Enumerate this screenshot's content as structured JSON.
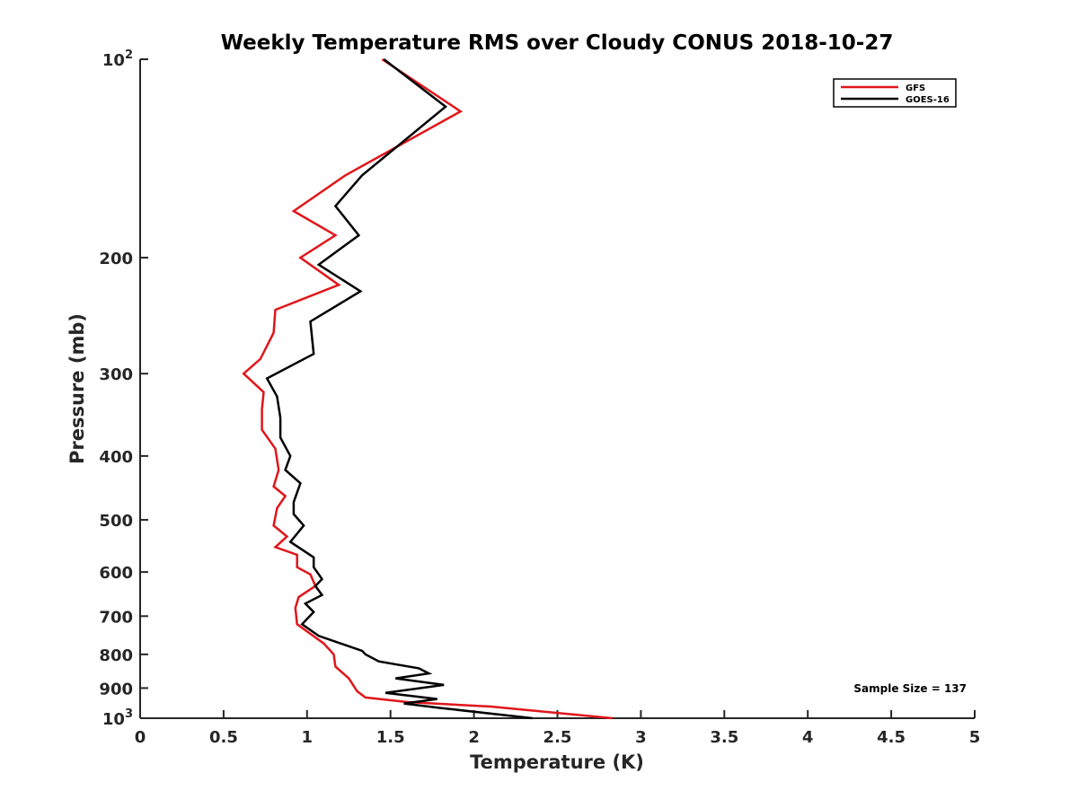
{
  "chart_data": {
    "type": "line",
    "title": "Weekly Temperature RMS over Cloudy CONUS 2018-10-27",
    "xlabel": "Temperature (K)",
    "ylabel": "Pressure (mb)",
    "xlim": [
      0,
      5
    ],
    "ylim": [
      100,
      1000
    ],
    "y_scale": "log",
    "y_reversed": true,
    "grid": false,
    "legend_position": "top-right",
    "x_ticks": [
      "0",
      "0.5",
      "1",
      "1.5",
      "2",
      "2.5",
      "3",
      "3.5",
      "4",
      "4.5",
      "5"
    ],
    "y_ticks": [
      {
        "value": 100,
        "base": "10",
        "exp": "2"
      },
      {
        "value": 200,
        "label": "200"
      },
      {
        "value": 300,
        "label": "300"
      },
      {
        "value": 400,
        "label": "400"
      },
      {
        "value": 500,
        "label": "500"
      },
      {
        "value": 600,
        "label": "600"
      },
      {
        "value": 700,
        "label": "700"
      },
      {
        "value": 800,
        "label": "800"
      },
      {
        "value": 900,
        "label": "900"
      },
      {
        "value": 1000,
        "base": "10",
        "exp": "3"
      }
    ],
    "annotation": "Sample Size = 137",
    "series": [
      {
        "name": "GFS",
        "color": "#e0161a",
        "points": [
          [
            1.45,
            100
          ],
          [
            1.92,
            120
          ],
          [
            1.23,
            150
          ],
          [
            0.92,
            170
          ],
          [
            1.17,
            185
          ],
          [
            0.96,
            200
          ],
          [
            1.19,
            220
          ],
          [
            0.81,
            240
          ],
          [
            0.8,
            260
          ],
          [
            0.72,
            285
          ],
          [
            0.62,
            300
          ],
          [
            0.74,
            320
          ],
          [
            0.73,
            340
          ],
          [
            0.73,
            365
          ],
          [
            0.81,
            390
          ],
          [
            0.83,
            420
          ],
          [
            0.8,
            445
          ],
          [
            0.87,
            460
          ],
          [
            0.82,
            480
          ],
          [
            0.8,
            510
          ],
          [
            0.88,
            530
          ],
          [
            0.81,
            550
          ],
          [
            0.94,
            565
          ],
          [
            0.94,
            590
          ],
          [
            1.02,
            605
          ],
          [
            1.05,
            630
          ],
          [
            0.95,
            655
          ],
          [
            0.93,
            680
          ],
          [
            0.94,
            720
          ],
          [
            1.1,
            770
          ],
          [
            1.16,
            800
          ],
          [
            1.17,
            835
          ],
          [
            1.25,
            870
          ],
          [
            1.3,
            910
          ],
          [
            1.35,
            930
          ],
          [
            1.6,
            945
          ],
          [
            2.1,
            960
          ],
          [
            2.83,
            1000
          ]
        ]
      },
      {
        "name": "GOES-16",
        "color": "#000000",
        "points": [
          [
            1.46,
            100
          ],
          [
            1.83,
            118
          ],
          [
            1.33,
            150
          ],
          [
            1.17,
            167
          ],
          [
            1.31,
            185
          ],
          [
            1.07,
            205
          ],
          [
            1.32,
            225
          ],
          [
            1.02,
            250
          ],
          [
            1.04,
            280
          ],
          [
            0.76,
            305
          ],
          [
            0.82,
            325
          ],
          [
            0.84,
            350
          ],
          [
            0.84,
            375
          ],
          [
            0.9,
            400
          ],
          [
            0.87,
            420
          ],
          [
            0.96,
            440
          ],
          [
            0.92,
            470
          ],
          [
            0.92,
            490
          ],
          [
            0.98,
            510
          ],
          [
            0.9,
            540
          ],
          [
            1.04,
            570
          ],
          [
            1.04,
            590
          ],
          [
            1.09,
            615
          ],
          [
            1.05,
            630
          ],
          [
            1.09,
            650
          ],
          [
            0.99,
            670
          ],
          [
            1.04,
            690
          ],
          [
            0.97,
            720
          ],
          [
            1.07,
            750
          ],
          [
            1.33,
            790
          ],
          [
            1.35,
            800
          ],
          [
            1.43,
            820
          ],
          [
            1.67,
            840
          ],
          [
            1.73,
            855
          ],
          [
            1.53,
            870
          ],
          [
            1.82,
            890
          ],
          [
            1.47,
            915
          ],
          [
            1.78,
            935
          ],
          [
            1.58,
            950
          ],
          [
            1.8,
            965
          ],
          [
            2.35,
            1000
          ]
        ]
      }
    ]
  }
}
